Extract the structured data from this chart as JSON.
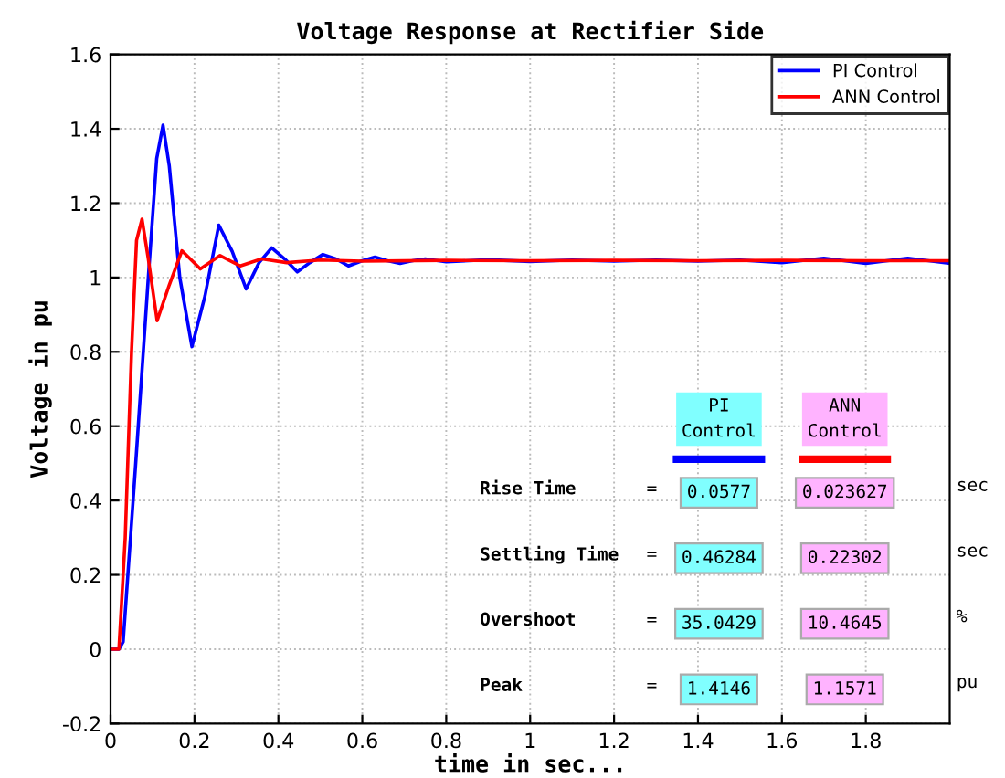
{
  "chart_data": {
    "type": "line",
    "title": "Voltage Response at Rectifier Side",
    "xlabel": "time in sec...",
    "ylabel": "Voltage in pu",
    "xlim": [
      0,
      2
    ],
    "ylim": [
      -0.2,
      1.6
    ],
    "xticks": [
      0,
      0.2,
      0.4,
      0.6,
      0.8,
      1,
      1.2,
      1.4,
      1.6,
      1.8
    ],
    "yticks": [
      -0.2,
      0,
      0.2,
      0.4,
      0.6,
      0.8,
      1,
      1.2,
      1.4,
      1.6
    ],
    "grid": true,
    "legend": "top right",
    "line_style": "solid",
    "marker": "none",
    "series": [
      {
        "name": "PI Control",
        "color": "#0000ff",
        "x": [
          0,
          0.02,
          0.03,
          0.06,
          0.09,
          0.11,
          0.125,
          0.14,
          0.165,
          0.194,
          0.225,
          0.258,
          0.29,
          0.323,
          0.354,
          0.384,
          0.415,
          0.445,
          0.475,
          0.506,
          0.537,
          0.567,
          0.6,
          0.63,
          0.66,
          0.69,
          0.72,
          0.75,
          0.8,
          0.9,
          1.0,
          1.1,
          1.2,
          1.3,
          1.4,
          1.5,
          1.6,
          1.7,
          1.8,
          1.9,
          2.0
        ],
        "values": [
          0,
          0,
          0.02,
          0.5,
          1.0,
          1.32,
          1.41,
          1.3,
          1.0,
          0.814,
          0.95,
          1.141,
          1.07,
          0.969,
          1.04,
          1.08,
          1.05,
          1.015,
          1.04,
          1.062,
          1.05,
          1.031,
          1.045,
          1.055,
          1.045,
          1.038,
          1.045,
          1.05,
          1.042,
          1.048,
          1.043,
          1.047,
          1.044,
          1.047,
          1.044,
          1.047,
          1.04,
          1.052,
          1.038,
          1.052,
          1.038
        ]
      },
      {
        "name": "ANN Control",
        "color": "#ff0000",
        "x": [
          0,
          0.02,
          0.035,
          0.05,
          0.062,
          0.075,
          0.09,
          0.111,
          0.14,
          0.17,
          0.214,
          0.261,
          0.309,
          0.36,
          0.42,
          0.5,
          0.6,
          0.8,
          1.0,
          1.2,
          1.4,
          1.6,
          1.8,
          2.0
        ],
        "values": [
          0,
          0,
          0.3,
          0.8,
          1.1,
          1.157,
          1.05,
          0.884,
          0.98,
          1.072,
          1.023,
          1.059,
          1.031,
          1.05,
          1.04,
          1.047,
          1.044,
          1.046,
          1.045,
          1.046,
          1.045,
          1.046,
          1.045,
          1.045
        ]
      }
    ],
    "annotations": [
      "PI\nControl",
      "ANN\nControl",
      "Rise Time",
      "=",
      "0.0577",
      "0.023627",
      "sec",
      "Settling Time",
      "=",
      "0.46284",
      "0.22302",
      "sec",
      "Overshoot",
      "=",
      "35.0429",
      "10.4645",
      "%",
      "Peak",
      "=",
      "1.4146",
      "1.1571",
      "pu"
    ]
  }
}
